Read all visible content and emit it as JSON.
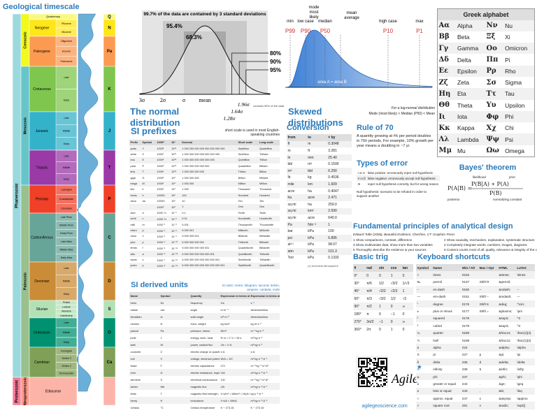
{
  "geo": {
    "title": "Geological timescale",
    "eons": [
      "Phanerozoic",
      "Proterozoic"
    ],
    "eras": [
      "Cenozoic",
      "Mesozoic",
      "Paleozoic",
      "Neoproterozoic"
    ],
    "periods": [
      {
        "name": "Quaternary",
        "letter": "Q",
        "color": "#f9f97f",
        "epochs": []
      },
      {
        "name": "Neogene",
        "letter": "N",
        "color": "#ffe619",
        "epochs": [
          "Pliocene",
          "Miocene"
        ]
      },
      {
        "name": "Paleogene",
        "letter": "Pa",
        "color": "#fd9a52",
        "epochs": [
          "Oligocene",
          "Eocene",
          "Paleocene"
        ]
      },
      {
        "name": "Cretaceous",
        "letter": "K",
        "color": "#7fc64e",
        "epochs": [
          "Late",
          "Early"
        ]
      },
      {
        "name": "Jurassic",
        "letter": "J",
        "color": "#34b2c9",
        "epochs": [
          "Late",
          "Middle",
          "Early"
        ]
      },
      {
        "name": "Triassic",
        "letter": "T",
        "color": "#9a3aa6",
        "epochs": [
          "Late",
          "Middle",
          "Early"
        ]
      },
      {
        "name": "Permian",
        "letter": "P",
        "color": "#f04028",
        "epochs": [
          "Lopingian",
          "Guadalupian",
          "Cisuralian"
        ]
      },
      {
        "name": "Carboniferous",
        "letter": "C",
        "color": "#67a599",
        "epochs": [
          "Late Penn",
          "Middle Penn",
          "Early Penn",
          "Late Miss",
          "Middle Miss",
          "Early Miss"
        ]
      },
      {
        "name": "Devonian",
        "letter": "D",
        "color": "#cb8c37",
        "epochs": [
          "Late",
          "Middle",
          "Early"
        ]
      },
      {
        "name": "Silurian",
        "letter": "S",
        "color": "#b3e1b6",
        "epochs": [
          "Pridoli",
          "Ludlow",
          "Wenlock",
          "Llandovery"
        ]
      },
      {
        "name": "Ordovician",
        "letter": "O",
        "color": "#009270",
        "epochs": [
          "Late",
          "Middle",
          "Early"
        ]
      },
      {
        "name": "Cambrian",
        "letter": "Ca",
        "color": "#7fa056",
        "epochs": [
          "Furongian",
          "Series 3",
          "Series 2",
          "Terreneuvian"
        ]
      },
      {
        "name": "Ediacaran",
        "letter": "",
        "color": "#fdb4a8",
        "epochs": []
      }
    ]
  },
  "normal": {
    "title": "The normal distribution",
    "top": "99.7% of the data are contained by 3 standard deviations",
    "bands": [
      "95.4%",
      "68.3%"
    ],
    "pct": [
      "80%",
      "90%",
      "95%"
    ],
    "sd": [
      "1.28σ",
      "1.64σ",
      "1.96σ"
    ],
    "contains": "contains 95% of the data",
    "axis": [
      "3σ",
      "2σ",
      "σ",
      "mean"
    ]
  },
  "skewed": {
    "title": "Skewed distributions",
    "area": "area A = area B",
    "markers": [
      {
        "label": "min",
        "p": "P99"
      },
      {
        "label": "low case",
        "p": "P90"
      },
      {
        "label": "mode most likely"
      },
      {
        "label": "median",
        "p": "P50"
      },
      {
        "label": "mean average"
      },
      {
        "label": "high case",
        "p": "P10"
      },
      {
        "label": "max",
        "p": "P1"
      }
    ],
    "note": "For a log-normal distribution",
    "order": "Mode (most likely) < Median (P50) < Mean"
  },
  "greek": {
    "title": "Greek alphabet",
    "rows": [
      [
        "Αα",
        "Alpha",
        "Νν",
        "Nu"
      ],
      [
        "Ββ",
        "Beta",
        "Ξξ",
        "Xi"
      ],
      [
        "Γγ",
        "Gamma",
        "Οο",
        "Omicron"
      ],
      [
        "Δδ",
        "Delta",
        "Ππ",
        "Pi"
      ],
      [
        "Εε",
        "Epsilon",
        "Ρρ",
        "Rho"
      ],
      [
        "Ζζ",
        "Zeta",
        "Σσ",
        "Sigma"
      ],
      [
        "Ηη",
        "Eta",
        "Ττ",
        "Tau"
      ],
      [
        "Θθ",
        "Theta",
        "Υυ",
        "Upsilon"
      ],
      [
        "Ιι",
        "Iota",
        "Φφ",
        "Phi"
      ],
      [
        "Κκ",
        "Kappa",
        "Χχ",
        "Chi"
      ],
      [
        "Λλ",
        "Lambda",
        "Ψψ",
        "Psi"
      ],
      [
        "Μμ",
        "Mu",
        "Ωω",
        "Omega"
      ]
    ]
  },
  "prefixes": {
    "title": "SI prefixes",
    "note": "short scale is used in most English-speaking countries",
    "columns": [
      "Prefix",
      "Symbol",
      "1000ᵐ",
      "10ⁿ",
      "Decimal",
      "Short scale",
      "Long scale"
    ],
    "rows": [
      [
        "yotta",
        "Y",
        "1000⁸",
        "10²⁴",
        "1 000 000 000 000 000 000 000 000",
        "Septillion",
        "Quadrillion"
      ],
      [
        "zetta",
        "Z",
        "1000⁷",
        "10²¹",
        "1 000 000 000 000 000 000 000",
        "Sextillion",
        "Trilliard"
      ],
      [
        "exa",
        "E",
        "1000⁶",
        "10¹⁸",
        "1 000 000 000 000 000 000",
        "Quintillion",
        "Trillion"
      ],
      [
        "peta",
        "P",
        "1000⁵",
        "10¹⁵",
        "1 000 000 000 000 000",
        "Quadrillion",
        "Billiard"
      ],
      [
        "tera",
        "T",
        "1000⁴",
        "10¹²",
        "1 000 000 000 000",
        "Trillion",
        "Billion"
      ],
      [
        "giga",
        "G",
        "1000³",
        "10⁹",
        "1 000 000 000",
        "Billion",
        "Milliard"
      ],
      [
        "mega",
        "M",
        "1000²",
        "10⁶",
        "1 000 000",
        "Million",
        "Million"
      ],
      [
        "kilo",
        "k",
        "1000¹",
        "10³",
        "1 000",
        "Thousand",
        "Thousand"
      ],
      [
        "hecto",
        "h",
        "1000⅔",
        "10²",
        "100",
        "Hundred",
        "Hundred"
      ],
      [
        "deca",
        "da",
        "1000⅓",
        "10¹",
        "10",
        "Ten",
        "Ten"
      ],
      [
        "",
        "",
        "1000⁰",
        "10⁰",
        "1",
        "One",
        "One"
      ],
      [
        "deci",
        "d",
        "1000⁻⅓",
        "10⁻¹",
        "0.1",
        "Tenth",
        "Tenth"
      ],
      [
        "centi",
        "c",
        "1000⁻⅔",
        "10⁻²",
        "0.01",
        "Hundredth",
        "Hundredth"
      ],
      [
        "milli",
        "m",
        "1000⁻¹",
        "10⁻³",
        "0.001",
        "Thousandth",
        "Thousandth"
      ],
      [
        "micro",
        "μ",
        "1000⁻²",
        "10⁻⁶",
        "0.000 001",
        "Millionth",
        "Millionth"
      ],
      [
        "nano",
        "n",
        "1000⁻³",
        "10⁻⁹",
        "0.000 000 001",
        "Billionth",
        "Milliardth"
      ],
      [
        "pico",
        "p",
        "1000⁻⁴",
        "10⁻¹²",
        "0.000 000 000 001",
        "Trillionth",
        "Billionth"
      ],
      [
        "femto",
        "f",
        "1000⁻⁵",
        "10⁻¹⁵",
        "0.000 000 000 000 001",
        "Quadrillionth",
        "Billiardth"
      ],
      [
        "atto",
        "a",
        "1000⁻⁶",
        "10⁻¹⁸",
        "0.000 000 000 000 000 001",
        "Quintillionth",
        "Trillionth"
      ],
      [
        "zepto",
        "z",
        "1000⁻⁷",
        "10⁻²¹",
        "0.000 000 000 000 000 000 001",
        "Sextillionth",
        "Trilliardth"
      ],
      [
        "yocto",
        "y",
        "1000⁻⁸",
        "10⁻²⁴",
        "0.000 000 000 000 000 000 000 001",
        "Septillionth",
        "Quadrillionth"
      ]
    ]
  },
  "conversion": {
    "title": "Conversion",
    "columns": [
      "from",
      "to",
      "× by"
    ],
    "footnote": "(1) technical atmosphere",
    "rows": [
      [
        "ft",
        "m",
        "0.3048"
      ],
      [
        "m",
        "ft",
        "3.281"
      ],
      [
        "in",
        "mm",
        "25.40"
      ],
      [
        "bbl",
        "m³",
        "0.1590"
      ],
      [
        "m³",
        "bbl",
        "6.290"
      ],
      [
        "lb",
        "kg",
        "0.4536"
      ],
      [
        "mile",
        "km",
        "1.609"
      ],
      [
        "acre",
        "ha",
        "0.4047"
      ],
      [
        "ha",
        "acre",
        "2.471"
      ],
      [
        "sq mi",
        "ha",
        "259.0"
      ],
      [
        "sq mi",
        "km²",
        "2.590"
      ],
      [
        "sq mi",
        "acre",
        "640.0"
      ],
      [
        "Pa",
        "Nm⁻²",
        "1"
      ],
      [
        "bar",
        "kPa",
        "100"
      ],
      [
        "psi",
        "kPa",
        "6.895"
      ],
      [
        "at⁽¹⁾",
        "kPa",
        "98.07"
      ],
      [
        "atm",
        "kPa",
        "101.3"
      ],
      [
        "Torr",
        "kPa",
        "0.1333"
      ]
    ]
  },
  "rule70": {
    "title": "Rule of 70",
    "text": "A quantity growing at r% per period doubles in 70/r periods. For example, 10% growth per year means a doubling in ~7 yr."
  },
  "errors": {
    "title": "Types of error",
    "rows": [
      [
        "I or α",
        "false positive: erroneously reject null hypothesis"
      ],
      [
        "II or β",
        "false negative: erroneously accept null hypothesis"
      ],
      [
        "III",
        "reject null hypothesis correctly, but for wrong reason"
      ]
    ],
    "note": "Null hypothesis: scenario to be refuted in order to support another"
  },
  "bayes": {
    "title": "Bayes' theorem",
    "lhs": "P(A|B) =",
    "numerator": "P(B|A) ∗ P(A)",
    "denominator": "P(B)",
    "likelihood": "likelihood",
    "prior": "prior",
    "posterior": "posterior",
    "normalizing": "normalizing constant"
  },
  "principles": {
    "title": "Fundamental principles of analytical design",
    "citation": "Edward Tufte (2006), Beautiful Evidence, Cheshire, CT: Graphics Press",
    "items": [
      "1 Show comparisons, contrast, difference",
      "2 Show causality, mechanism, explanation, systematic structure",
      "3 Show multivariate data; show more than two variables",
      "4 Completely integrate words, numbers, images, diagrams",
      "5 Thoroughly describe the evidence & your sources",
      "6 Content counts most of all: quality, relevance & integrity of the content"
    ]
  },
  "trig": {
    "title": "Basic trig",
    "columns": [
      "θ",
      "rad",
      "sin",
      "cos",
      "tan"
    ],
    "rows": [
      [
        "0°",
        "0",
        "0",
        "1",
        "0"
      ],
      [
        "30°",
        "π/6",
        "1/2",
        "√3/2",
        "1/√3"
      ],
      [
        "45°",
        "π/4",
        "√2/2",
        "√2/2",
        "1"
      ],
      [
        "60°",
        "π/3",
        "√3/2",
        "1/2",
        "√3"
      ],
      [
        "90°",
        "π/2",
        "1",
        "0",
        "∞"
      ],
      [
        "180°",
        "π",
        "0",
        "−1",
        "0"
      ],
      [
        "270°",
        "3π/2",
        "−1",
        "0",
        "∞"
      ],
      [
        "360°",
        "2π",
        "0",
        "1",
        "0"
      ]
    ]
  },
  "keyboard": {
    "title": "Keyboard shortcuts",
    "columns": [
      "Symbol",
      "Name",
      "Win / Alt",
      "Mac / Opt",
      "HTML",
      "LaTeX"
    ],
    "rows": [
      [
        "×",
        "times",
        "0215",
        "",
        "&times;",
        "\\times"
      ],
      [
        "‰",
        "permil",
        "0137",
        "Shift R",
        "&permil;",
        ""
      ],
      [
        "–",
        "en-dash",
        "0150",
        "–",
        "&ndash;",
        "--"
      ],
      [
        "—",
        "em-dash",
        "0151",
        "Shift –",
        "&mdash;",
        "---"
      ],
      [
        "°",
        "degree",
        "0176",
        "Shift 8",
        "&deg;",
        "^\\circ"
      ],
      [
        "±",
        "plus or minus",
        "0177",
        "Shift =",
        "&plusmn;",
        "\\pm"
      ],
      [
        "²",
        "squared",
        "0178",
        "",
        "&sup2;",
        "^2"
      ],
      [
        "³",
        "cubed",
        "0179",
        "",
        "&sup3;",
        "^3"
      ],
      [
        "¼",
        "quarter",
        "0188",
        "",
        "&frac14;",
        "\\frac{1}{4}"
      ],
      [
        "½",
        "half",
        "0189",
        "",
        "&frac12;",
        "\\frac{1}{2}"
      ],
      [
        "α",
        "alpha",
        "224",
        "",
        "&alpha;",
        "\\alpha"
      ],
      [
        "π",
        "pi",
        "227",
        "p",
        "&pi;",
        "\\pi"
      ],
      [
        "δ",
        "delta",
        "235",
        "d",
        "&delta;",
        "\\delta"
      ],
      [
        "∞",
        "infinity",
        "236",
        "5",
        "&infin;",
        "\\infty"
      ],
      [
        "φ",
        "phi",
        "237",
        "",
        "&phi;",
        "\\phi"
      ],
      [
        "≥",
        "greater or equal",
        "242",
        ".",
        "&ge;",
        "\\geq"
      ],
      [
        "≤",
        "less or equal",
        "243",
        ",",
        "&le;",
        "\\leq"
      ],
      [
        "≈",
        "approx. equal",
        "247",
        "x",
        "&asymp;",
        "\\approx"
      ],
      [
        "√",
        "square root",
        "251",
        "v",
        "&radic;",
        "\\sqrt{}"
      ]
    ]
  },
  "derived": {
    "title": "SI derived units",
    "note": "SI units: metre, kilogram, second, kelvin, ampere, candela, mole",
    "columns": [
      "Name",
      "Symbol",
      "Quantity",
      "Expression in terms of other units",
      "Expression in terms of SI base units"
    ],
    "rows": [
      [
        "hertz",
        "Hz",
        "frequency",
        "1/s",
        "s⁻¹"
      ],
      [
        "radian",
        "rad",
        "angle",
        "m·m⁻¹",
        "dimensionless"
      ],
      [
        "steradian",
        "sr",
        "solid angle",
        "m²·m⁻²",
        "dimensionless"
      ],
      [
        "newton",
        "N",
        "force, weight",
        "kg·m/s²",
        "kg·m·s⁻²"
      ],
      [
        "pascal",
        "Pa",
        "pressure, stress",
        "N/m²",
        "m⁻¹·kg·s⁻²"
      ],
      [
        "joule",
        "J",
        "energy, work, heat",
        "N·m = C·V = W·s",
        "m²·kg·s⁻²"
      ],
      [
        "watt",
        "W",
        "power, radiant flux",
        "J/s = V·A",
        "m²·kg·s⁻³"
      ],
      [
        "coulomb",
        "C",
        "electric charge or quantity of electricity",
        "s·A",
        "s·A"
      ],
      [
        "volt",
        "V",
        "voltage, electrical potential difference, electromotive force",
        "W/A = J/C",
        "m²·kg·s⁻³·A⁻¹"
      ],
      [
        "farad",
        "F",
        "electric capacitance",
        "C/V",
        "m⁻²·kg⁻¹·s⁴·A²"
      ],
      [
        "ohm",
        "Ω",
        "electric resistance, impedance, reactance",
        "V/A",
        "m²·kg·s⁻³·A⁻²"
      ],
      [
        "siemens",
        "S",
        "electrical conductance",
        "1/Ω",
        "m⁻²·kg⁻¹·s³·A²"
      ],
      [
        "weber",
        "Wb",
        "magnetic flux",
        "J/A",
        "m²·kg·s⁻²·A⁻¹"
      ],
      [
        "tesla",
        "T",
        "magnetic field strength, magnetic flux density",
        "V·s/m² = Wb/m² = N/(A·m)",
        "kg·s⁻²·A⁻¹"
      ],
      [
        "henry",
        "H",
        "inductance",
        "V·s/A = Wb/A",
        "m²·kg·s⁻²·A⁻²"
      ],
      [
        "Celsius",
        "°C",
        "Celsius temperature",
        "K − 273.15",
        "K − 273.15"
      ]
    ]
  },
  "footer": {
    "logo": "Agile",
    "mark": "*",
    "url": "agilegeoscience.com"
  }
}
